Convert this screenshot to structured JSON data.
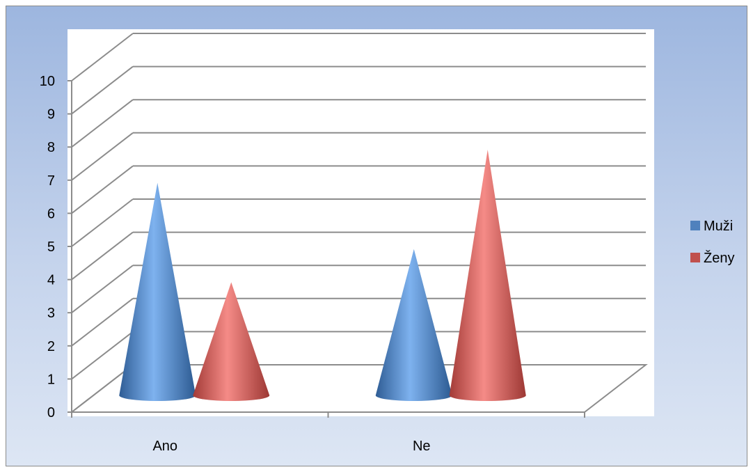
{
  "chart_data": {
    "type": "bar",
    "style": "3d-cone",
    "categories": [
      "Ano",
      "Ne"
    ],
    "series": [
      {
        "name": "Muži",
        "values": [
          6.5,
          4.5
        ],
        "color": "#4f81bd"
      },
      {
        "name": "Ženy",
        "values": [
          3.5,
          7.5
        ],
        "color": "#c0504d"
      }
    ],
    "y_ticks": [
      "0",
      "1",
      "2",
      "3",
      "4",
      "5",
      "6",
      "7",
      "8",
      "9",
      "10"
    ],
    "ylim": [
      0,
      10
    ],
    "grid": true,
    "legend_position": "right"
  }
}
